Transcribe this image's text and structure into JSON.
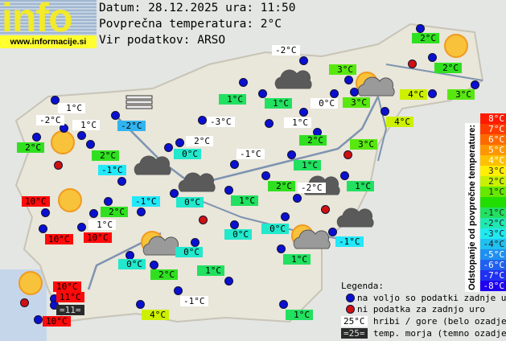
{
  "header": {
    "logo_word": "info",
    "logo_url": "www.informacije.si",
    "date_line": "Datum: 28.12.2025 ura: 11:50",
    "avg_line": "Povprečna temperatura: 2°C",
    "source_line": "Vir podatkov: ARSO"
  },
  "colors": {
    "white": "#ffffff",
    "cyan_dark": "#30b4f0",
    "cyan": "#22e8f8",
    "teal": "#22e8cc",
    "green1": "#22e060",
    "green2": "#30e020",
    "green3": "#58e810",
    "yellowgreen": "#ccf000",
    "red": "#ff0a0a",
    "sea": "#2a2a2a",
    "dot_ok": "#0a10d0",
    "dot_missing": "#d01010"
  },
  "stations": [
    {
      "t": "1°C",
      "c": "white"
    },
    {
      "t": "-2°C",
      "c": "white"
    },
    {
      "t": "1°C",
      "c": "white"
    },
    {
      "t": "-2°C",
      "c": "cyan_dark"
    },
    {
      "t": "2°C",
      "c": "green2"
    },
    {
      "t": "2°C",
      "c": "green2"
    },
    {
      "t": "-1°C",
      "c": "cyan"
    },
    {
      "t": "10°C",
      "c": "red"
    },
    {
      "t": "2°C",
      "c": "green2"
    },
    {
      "t": "-1°C",
      "c": "cyan"
    },
    {
      "t": "1°C",
      "c": "white"
    },
    {
      "t": "10°C",
      "c": "red"
    },
    {
      "t": "10°C",
      "c": "red"
    },
    {
      "t": "-3°C",
      "c": "white"
    },
    {
      "t": "2°C",
      "c": "white"
    },
    {
      "t": "0°C",
      "c": "teal"
    },
    {
      "t": "-1°C",
      "c": "white"
    },
    {
      "t": "0°C",
      "c": "teal"
    },
    {
      "t": "1°C",
      "c": "green1"
    },
    {
      "t": "0°C",
      "c": "teal"
    },
    {
      "t": "0°C",
      "c": "teal"
    },
    {
      "t": "-2°C",
      "c": "white"
    },
    {
      "t": "1°C",
      "c": "green1"
    },
    {
      "t": "1°C",
      "c": "green1"
    },
    {
      "t": "0°C",
      "c": "white"
    },
    {
      "t": "1°C",
      "c": "white"
    },
    {
      "t": "3°C",
      "c": "green3"
    },
    {
      "t": "3°C",
      "c": "green3"
    },
    {
      "t": "2°C",
      "c": "green2"
    },
    {
      "t": "2°C",
      "c": "green2"
    },
    {
      "t": "4°C",
      "c": "yellowgreen"
    },
    {
      "t": "3°C",
      "c": "green3"
    },
    {
      "t": "4°C",
      "c": "yellowgreen"
    },
    {
      "t": "2°C",
      "c": "green2"
    },
    {
      "t": "3°C",
      "c": "green3"
    },
    {
      "t": "1°C",
      "c": "green1"
    },
    {
      "t": "2°C",
      "c": "green2"
    },
    {
      "t": "-2°C",
      "c": "white"
    },
    {
      "t": "1°C",
      "c": "green1"
    },
    {
      "t": "-1°C",
      "c": "cyan"
    },
    {
      "t": "0°C",
      "c": "teal"
    },
    {
      "t": "0°C",
      "c": "teal"
    },
    {
      "t": "2°C",
      "c": "green2"
    },
    {
      "t": "1°C",
      "c": "green1"
    },
    {
      "t": "1°C",
      "c": "green1"
    },
    {
      "t": "10°C",
      "c": "red"
    },
    {
      "t": "11°C",
      "c": "red"
    },
    {
      "t": "=11=",
      "c": "sea"
    },
    {
      "t": "10°C",
      "c": "red"
    },
    {
      "t": "-1°C",
      "c": "white"
    },
    {
      "t": "4°C",
      "c": "yellowgreen"
    },
    {
      "t": "1°C",
      "c": "green1"
    }
  ],
  "dot_status": [
    "ok",
    "ok",
    "ok",
    "ok",
    "ok",
    "ok",
    "missing",
    "ok",
    "ok",
    "ok",
    "ok",
    "ok",
    "ok",
    "ok",
    "ok",
    "ok",
    "ok",
    "ok",
    "ok",
    "missing",
    "ok",
    "ok",
    "ok",
    "ok",
    "ok",
    "ok",
    "ok",
    "ok",
    "ok",
    "missing",
    "ok",
    "ok",
    "ok",
    "ok",
    "ok",
    "ok",
    "ok",
    "ok",
    "ok",
    "ok",
    "missing",
    "ok",
    "ok",
    "ok",
    "ok",
    "ok",
    "ok",
    "ok",
    "ok",
    "missing",
    "ok",
    "ok",
    "ok",
    "ok",
    "missing",
    "ok",
    "ok"
  ],
  "weather_icons": [
    "fog",
    "sun",
    "sun",
    "sun",
    "sun",
    "sun-cloud",
    "sun-cloud",
    "sun-cloud",
    "cloud",
    "cloud",
    "cloud",
    "cloud",
    "cloud"
  ],
  "colorbar": {
    "title": "Odstopanje od povprečne temperature:",
    "cells": [
      {
        "t": "8°C",
        "c": "#ff1a00"
      },
      {
        "t": "7°C",
        "c": "#ff3c00"
      },
      {
        "t": "6°C",
        "c": "#ff6a00"
      },
      {
        "t": "5°C",
        "c": "#ff9600"
      },
      {
        "t": "4°C",
        "c": "#ffc000"
      },
      {
        "t": "3°C",
        "c": "#ffee00"
      },
      {
        "t": "2°C",
        "c": "#c8f000"
      },
      {
        "t": "1°C",
        "c": "#66e800"
      },
      {
        "t": "",
        "c": "#22dd00"
      },
      {
        "t": "-1°C",
        "c": "#22e060"
      },
      {
        "t": "-2°C",
        "c": "#20e8b0"
      },
      {
        "t": "-3°C",
        "c": "#20eaf0"
      },
      {
        "t": "-4°C",
        "c": "#20c0f0"
      },
      {
        "t": "-5°C",
        "c": "#2090f0"
      },
      {
        "t": "-6°C",
        "c": "#2060f0"
      },
      {
        "t": "-7°C",
        "c": "#2030f0"
      },
      {
        "t": "-8°C",
        "c": "#2000f0"
      }
    ]
  },
  "legend": {
    "title": "Legenda:",
    "ok": "na voljo so podatki zadnje ure",
    "missing": "ni podatka za zadnjo uro",
    "mountain_sample": "25°C",
    "mountain_text": "hribi / gore (belo ozadje)",
    "sea_sample": "=25=",
    "sea_text": "temp. morja (temno ozadje)"
  }
}
